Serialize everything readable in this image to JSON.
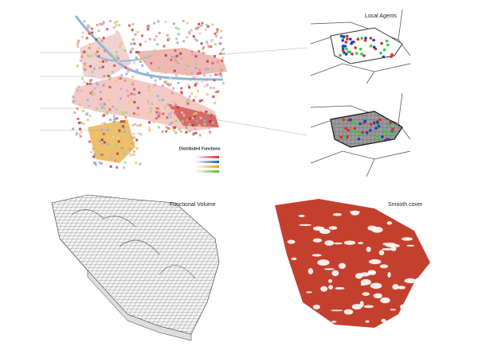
{
  "map": {
    "legend_title": "Distributed Functions"
  },
  "panels": [
    {
      "title": "Local Agents"
    },
    {
      "title": "Functional Volume"
    },
    {
      "title": "Smooth cover"
    }
  ]
}
